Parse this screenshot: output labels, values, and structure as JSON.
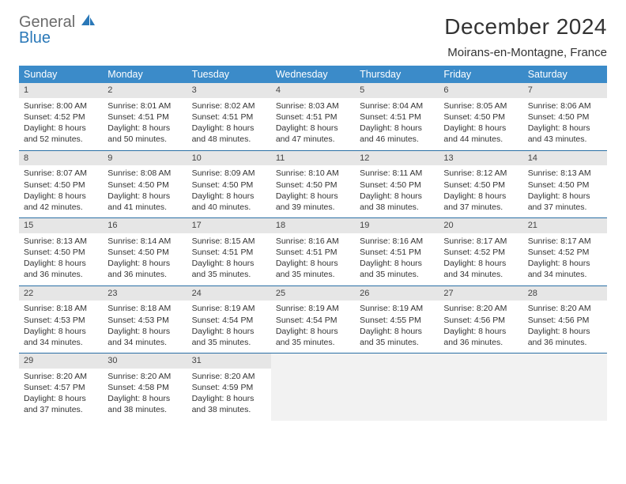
{
  "logo": {
    "line1": "General",
    "line2": "Blue"
  },
  "title": "December 2024",
  "location": "Moirans-en-Montagne, France",
  "colors": {
    "header_bg": "#3b8bc9",
    "header_text": "#ffffff",
    "row_divider": "#2a6fa5",
    "daynum_bg": "#e6e6e6",
    "empty_bg": "#f2f2f2",
    "body_text": "#333333",
    "logo_gray": "#6b6b6b",
    "logo_blue": "#2a78b8"
  },
  "typography": {
    "title_fontsize": 28,
    "location_fontsize": 15,
    "dayheader_fontsize": 12.5,
    "cell_fontsize": 10.5,
    "font_family": "Arial"
  },
  "day_headers": [
    "Sunday",
    "Monday",
    "Tuesday",
    "Wednesday",
    "Thursday",
    "Friday",
    "Saturday"
  ],
  "weeks": [
    [
      {
        "n": "1",
        "sr": "Sunrise: 8:00 AM",
        "ss": "Sunset: 4:52 PM",
        "dl": "Daylight: 8 hours and 52 minutes."
      },
      {
        "n": "2",
        "sr": "Sunrise: 8:01 AM",
        "ss": "Sunset: 4:51 PM",
        "dl": "Daylight: 8 hours and 50 minutes."
      },
      {
        "n": "3",
        "sr": "Sunrise: 8:02 AM",
        "ss": "Sunset: 4:51 PM",
        "dl": "Daylight: 8 hours and 48 minutes."
      },
      {
        "n": "4",
        "sr": "Sunrise: 8:03 AM",
        "ss": "Sunset: 4:51 PM",
        "dl": "Daylight: 8 hours and 47 minutes."
      },
      {
        "n": "5",
        "sr": "Sunrise: 8:04 AM",
        "ss": "Sunset: 4:51 PM",
        "dl": "Daylight: 8 hours and 46 minutes."
      },
      {
        "n": "6",
        "sr": "Sunrise: 8:05 AM",
        "ss": "Sunset: 4:50 PM",
        "dl": "Daylight: 8 hours and 44 minutes."
      },
      {
        "n": "7",
        "sr": "Sunrise: 8:06 AM",
        "ss": "Sunset: 4:50 PM",
        "dl": "Daylight: 8 hours and 43 minutes."
      }
    ],
    [
      {
        "n": "8",
        "sr": "Sunrise: 8:07 AM",
        "ss": "Sunset: 4:50 PM",
        "dl": "Daylight: 8 hours and 42 minutes."
      },
      {
        "n": "9",
        "sr": "Sunrise: 8:08 AM",
        "ss": "Sunset: 4:50 PM",
        "dl": "Daylight: 8 hours and 41 minutes."
      },
      {
        "n": "10",
        "sr": "Sunrise: 8:09 AM",
        "ss": "Sunset: 4:50 PM",
        "dl": "Daylight: 8 hours and 40 minutes."
      },
      {
        "n": "11",
        "sr": "Sunrise: 8:10 AM",
        "ss": "Sunset: 4:50 PM",
        "dl": "Daylight: 8 hours and 39 minutes."
      },
      {
        "n": "12",
        "sr": "Sunrise: 8:11 AM",
        "ss": "Sunset: 4:50 PM",
        "dl": "Daylight: 8 hours and 38 minutes."
      },
      {
        "n": "13",
        "sr": "Sunrise: 8:12 AM",
        "ss": "Sunset: 4:50 PM",
        "dl": "Daylight: 8 hours and 37 minutes."
      },
      {
        "n": "14",
        "sr": "Sunrise: 8:13 AM",
        "ss": "Sunset: 4:50 PM",
        "dl": "Daylight: 8 hours and 37 minutes."
      }
    ],
    [
      {
        "n": "15",
        "sr": "Sunrise: 8:13 AM",
        "ss": "Sunset: 4:50 PM",
        "dl": "Daylight: 8 hours and 36 minutes."
      },
      {
        "n": "16",
        "sr": "Sunrise: 8:14 AM",
        "ss": "Sunset: 4:50 PM",
        "dl": "Daylight: 8 hours and 36 minutes."
      },
      {
        "n": "17",
        "sr": "Sunrise: 8:15 AM",
        "ss": "Sunset: 4:51 PM",
        "dl": "Daylight: 8 hours and 35 minutes."
      },
      {
        "n": "18",
        "sr": "Sunrise: 8:16 AM",
        "ss": "Sunset: 4:51 PM",
        "dl": "Daylight: 8 hours and 35 minutes."
      },
      {
        "n": "19",
        "sr": "Sunrise: 8:16 AM",
        "ss": "Sunset: 4:51 PM",
        "dl": "Daylight: 8 hours and 35 minutes."
      },
      {
        "n": "20",
        "sr": "Sunrise: 8:17 AM",
        "ss": "Sunset: 4:52 PM",
        "dl": "Daylight: 8 hours and 34 minutes."
      },
      {
        "n": "21",
        "sr": "Sunrise: 8:17 AM",
        "ss": "Sunset: 4:52 PM",
        "dl": "Daylight: 8 hours and 34 minutes."
      }
    ],
    [
      {
        "n": "22",
        "sr": "Sunrise: 8:18 AM",
        "ss": "Sunset: 4:53 PM",
        "dl": "Daylight: 8 hours and 34 minutes."
      },
      {
        "n": "23",
        "sr": "Sunrise: 8:18 AM",
        "ss": "Sunset: 4:53 PM",
        "dl": "Daylight: 8 hours and 34 minutes."
      },
      {
        "n": "24",
        "sr": "Sunrise: 8:19 AM",
        "ss": "Sunset: 4:54 PM",
        "dl": "Daylight: 8 hours and 35 minutes."
      },
      {
        "n": "25",
        "sr": "Sunrise: 8:19 AM",
        "ss": "Sunset: 4:54 PM",
        "dl": "Daylight: 8 hours and 35 minutes."
      },
      {
        "n": "26",
        "sr": "Sunrise: 8:19 AM",
        "ss": "Sunset: 4:55 PM",
        "dl": "Daylight: 8 hours and 35 minutes."
      },
      {
        "n": "27",
        "sr": "Sunrise: 8:20 AM",
        "ss": "Sunset: 4:56 PM",
        "dl": "Daylight: 8 hours and 36 minutes."
      },
      {
        "n": "28",
        "sr": "Sunrise: 8:20 AM",
        "ss": "Sunset: 4:56 PM",
        "dl": "Daylight: 8 hours and 36 minutes."
      }
    ],
    [
      {
        "n": "29",
        "sr": "Sunrise: 8:20 AM",
        "ss": "Sunset: 4:57 PM",
        "dl": "Daylight: 8 hours and 37 minutes."
      },
      {
        "n": "30",
        "sr": "Sunrise: 8:20 AM",
        "ss": "Sunset: 4:58 PM",
        "dl": "Daylight: 8 hours and 38 minutes."
      },
      {
        "n": "31",
        "sr": "Sunrise: 8:20 AM",
        "ss": "Sunset: 4:59 PM",
        "dl": "Daylight: 8 hours and 38 minutes."
      },
      {
        "empty": true
      },
      {
        "empty": true
      },
      {
        "empty": true
      },
      {
        "empty": true
      }
    ]
  ]
}
